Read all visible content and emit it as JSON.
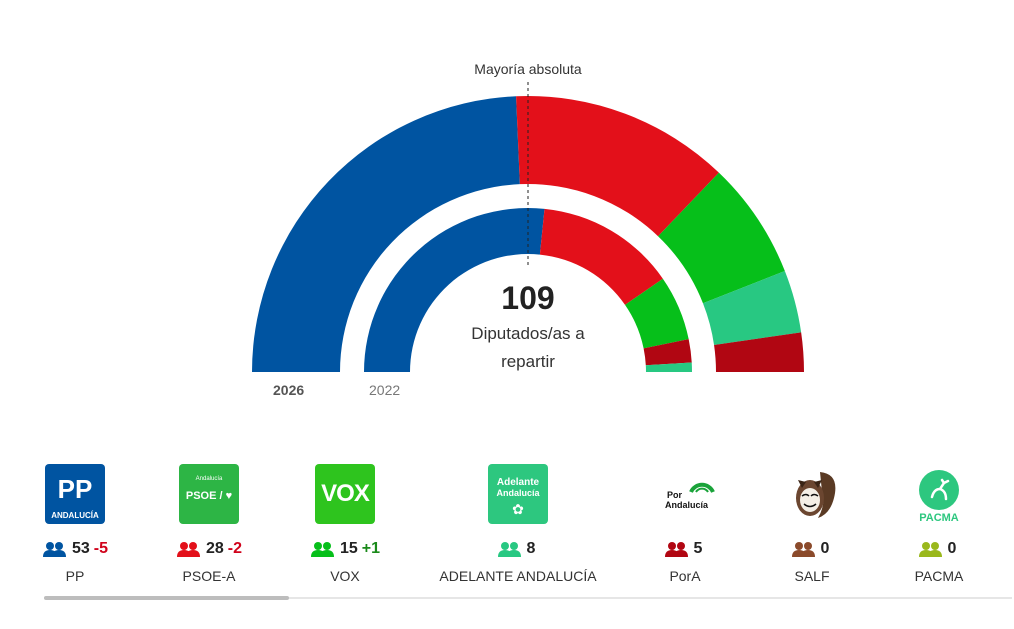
{
  "chart_data": {
    "type": "hemicycle",
    "majority_label": "Mayoría absoluta",
    "total": "109",
    "total_label": "Diputados/as a repartir",
    "rings": [
      {
        "label": "2026",
        "seats": [
          {
            "party": "PP",
            "value": 53,
            "color": "#0054a1"
          },
          {
            "party": "PSOE-A",
            "value": 28,
            "color": "#e3101a"
          },
          {
            "party": "VOX",
            "value": 15,
            "color": "#06bf1a"
          },
          {
            "party": "ADELANTE ANDALUCÍA",
            "value": 8,
            "color": "#28c882"
          },
          {
            "party": "PorA",
            "value": 5,
            "color": "#b10612"
          }
        ]
      },
      {
        "label": "2022",
        "seats": [
          {
            "party": "PP",
            "value": 58,
            "color": "#0054a1"
          },
          {
            "party": "PSOE-A",
            "value": 30,
            "color": "#e3101a"
          },
          {
            "party": "VOX",
            "value": 14,
            "color": "#06bf1a"
          },
          {
            "party": "PorA",
            "value": 5,
            "color": "#b10612"
          },
          {
            "party": "ADELANTE ANDALUCÍA",
            "value": 2,
            "color": "#28c882"
          }
        ]
      }
    ]
  },
  "parties": [
    {
      "name": "PP",
      "seats": "53",
      "delta": "-5",
      "delta_sign": "neg",
      "icon_color": "#0054a1",
      "logo_color": "#0054a1",
      "logo_text": "PP",
      "logo_sub": "ANDALUCÍA"
    },
    {
      "name": "PSOE-A",
      "seats": "28",
      "delta": "-2",
      "delta_sign": "neg",
      "icon_color": "#e3101a",
      "logo_color": "#2db545",
      "logo_text": "PSOE / ♥",
      "logo_sub": "Andalucía"
    },
    {
      "name": "VOX",
      "seats": "15",
      "delta": "+1",
      "delta_sign": "pos",
      "icon_color": "#06bf1a",
      "logo_color": "#2ec41e",
      "logo_text": "VOX",
      "logo_sub": ""
    },
    {
      "name": "ADELANTE ANDALUCÍA",
      "seats": "8",
      "delta": "",
      "delta_sign": "",
      "icon_color": "#28c882",
      "logo_color": "#2dc77f",
      "logo_text": "Adelante",
      "logo_sub": "Andalucía"
    },
    {
      "name": "PorA",
      "seats": "5",
      "delta": "",
      "delta_sign": "",
      "icon_color": "#b10612",
      "logo_color": "#ffffff",
      "logo_text": "Por",
      "logo_sub": "Andalucía"
    },
    {
      "name": "SALF",
      "seats": "0",
      "delta": "",
      "delta_sign": "",
      "icon_color": "#8b4a2b",
      "logo_color": "#ffffff",
      "logo_text": "",
      "logo_sub": ""
    },
    {
      "name": "PACMA",
      "seats": "0",
      "delta": "",
      "delta_sign": "",
      "icon_color": "#9ab81c",
      "logo_color": "#ffffff",
      "logo_text": "PACMA",
      "logo_sub": ""
    }
  ]
}
